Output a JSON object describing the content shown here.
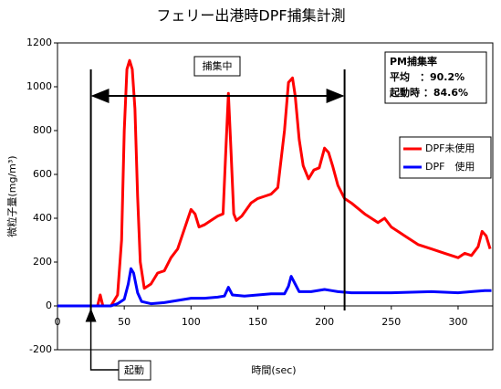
{
  "chart_data": {
    "type": "line",
    "title": "フェリー出港時DPF捕集計測",
    "x_label": "時間(sec)",
    "y_label": "微粒子量(mg/m³)",
    "xlim": [
      0,
      326
    ],
    "xticks": [
      0,
      50,
      100,
      150,
      200,
      250,
      300
    ],
    "ylim": [
      -200,
      1200
    ],
    "yticks": [
      -200,
      0,
      200,
      400,
      600,
      800,
      1000,
      1200
    ],
    "series": [
      {
        "name": "DPF未使用",
        "color": "#ff0000",
        "x": [
          0,
          20,
          30,
          32,
          34,
          40,
          45,
          48,
          50,
          52,
          54,
          56,
          58,
          60,
          62,
          65,
          70,
          75,
          80,
          85,
          90,
          95,
          100,
          103,
          106,
          110,
          115,
          120,
          124,
          126,
          128,
          130,
          132,
          134,
          138,
          145,
          150,
          155,
          160,
          165,
          170,
          173,
          176,
          178,
          181,
          184,
          188,
          192,
          196,
          200,
          203,
          206,
          210,
          215,
          220,
          230,
          240,
          245,
          250,
          260,
          270,
          280,
          290,
          300,
          305,
          310,
          315,
          318,
          321,
          324
        ],
        "values": [
          0,
          0,
          0,
          50,
          0,
          0,
          50,
          300,
          800,
          1080,
          1120,
          1080,
          900,
          500,
          200,
          80,
          100,
          150,
          160,
          220,
          260,
          350,
          440,
          420,
          360,
          370,
          390,
          410,
          420,
          700,
          970,
          700,
          420,
          390,
          410,
          470,
          490,
          500,
          510,
          540,
          800,
          1020,
          1040,
          960,
          760,
          640,
          580,
          620,
          630,
          720,
          700,
          640,
          550,
          490,
          470,
          420,
          380,
          400,
          360,
          320,
          280,
          260,
          240,
          220,
          240,
          230,
          270,
          340,
          320,
          260
        ]
      },
      {
        "name": "DPF　使用",
        "color": "#0000ff",
        "x": [
          0,
          20,
          40,
          45,
          50,
          53,
          55,
          57,
          60,
          63,
          70,
          80,
          90,
          100,
          110,
          120,
          125,
          128,
          131,
          140,
          150,
          160,
          170,
          173,
          175,
          178,
          181,
          190,
          200,
          205,
          210,
          220,
          250,
          280,
          300,
          310,
          320,
          325
        ],
        "values": [
          0,
          0,
          0,
          10,
          30,
          100,
          170,
          150,
          60,
          20,
          10,
          15,
          25,
          35,
          35,
          40,
          45,
          85,
          50,
          45,
          50,
          55,
          55,
          90,
          135,
          100,
          65,
          65,
          75,
          70,
          65,
          60,
          60,
          65,
          60,
          65,
          70,
          70
        ]
      }
    ],
    "span_label": "捕集中",
    "span": [
      25,
      215
    ],
    "start_label": "起動",
    "start_x": 25,
    "info_box": [
      "PM捕集率",
      "平均　：90.2%",
      "起動時 ：84.6%"
    ]
  }
}
